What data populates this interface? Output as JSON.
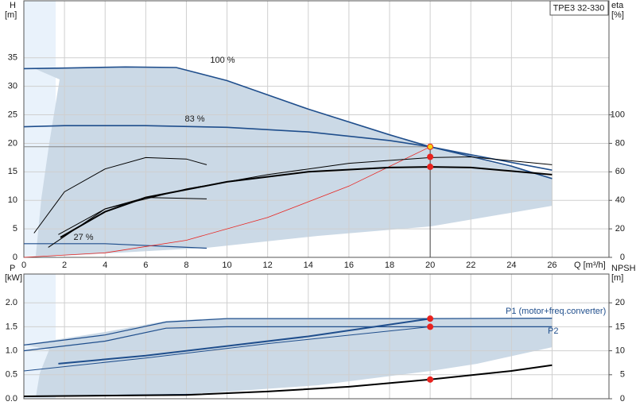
{
  "chart_data": [
    {
      "type": "line",
      "title": "TPE3 32-330",
      "y_label": [
        "H",
        "[m]"
      ],
      "y2_label": [
        "eta",
        "[%]"
      ],
      "x_label": "Q [m³/h]",
      "xlim": [
        0,
        28.8
      ],
      "xticks": [
        0,
        2,
        4,
        6,
        8,
        10,
        12,
        14,
        16,
        18,
        20,
        22,
        24,
        26
      ],
      "ylim": [
        0,
        45
      ],
      "yticks": [
        0,
        5,
        10,
        15,
        20,
        25,
        30,
        35
      ],
      "y2lim": [
        0,
        180
      ],
      "y2ticks": [
        0,
        20,
        40,
        60,
        80,
        100
      ],
      "grid": true,
      "series": [
        {
          "name": "100 %",
          "color": "#1f4e8c",
          "width": 1.6,
          "x": [
            0,
            2,
            5,
            7.5,
            10,
            14,
            18,
            20,
            24,
            26
          ],
          "values": [
            33.1,
            33.2,
            33.4,
            33.3,
            31,
            26,
            21.5,
            19.4,
            16,
            13.8
          ]
        },
        {
          "name": "83 %",
          "color": "#1f4e8c",
          "width": 1.6,
          "x": [
            0,
            2,
            6,
            10,
            14,
            18,
            20,
            22,
            26
          ],
          "values": [
            22.9,
            23.1,
            23.1,
            22.8,
            22,
            20.5,
            19.4,
            18,
            15.3
          ]
        },
        {
          "name": "27 %",
          "color": "#1f4e8c",
          "width": 1.2,
          "x": [
            0,
            4,
            9
          ],
          "values": [
            2.4,
            2.4,
            1.6
          ]
        },
        {
          "color": "#e8231f",
          "width": 0.8,
          "x": [
            0,
            4,
            8,
            12,
            16,
            20
          ],
          "values": [
            0,
            0.8,
            3,
            7,
            12.5,
            19.4
          ]
        },
        {
          "color": "#000000",
          "width": 2,
          "axis": "y2",
          "x": [
            1.8,
            4,
            6,
            10,
            14,
            18,
            20,
            22,
            26
          ],
          "values": [
            14,
            32,
            42,
            53,
            60,
            63,
            63.5,
            63,
            58
          ]
        },
        {
          "color": "#000000",
          "width": 1,
          "axis": "y2",
          "x": [
            1.7,
            4,
            8,
            12,
            16,
            20,
            22,
            26
          ],
          "values": [
            16,
            34,
            48,
            58,
            66,
            70,
            70.5,
            65
          ]
        },
        {
          "color": "#000000",
          "width": 1,
          "axis": "y2",
          "x": [
            0.5,
            2,
            4,
            6,
            8,
            9
          ],
          "values": [
            17,
            46,
            62,
            70,
            69,
            65
          ]
        },
        {
          "color": "#000000",
          "width": 1,
          "axis": "y2",
          "x": [
            1.2,
            4,
            6,
            9
          ],
          "values": [
            7,
            34,
            42,
            41
          ]
        }
      ],
      "points": [
        {
          "x": 20,
          "y": 19.4,
          "color": "#f5d312"
        },
        {
          "x": 20,
          "y": 70.5,
          "axis": "y2",
          "color": "#e8231f"
        },
        {
          "x": 20,
          "y": 63.5,
          "axis": "y2",
          "color": "#e8231f"
        }
      ]
    },
    {
      "type": "line",
      "y_label": [
        "P",
        "[kW]"
      ],
      "y2_label": [
        "NPSH",
        "[m]"
      ],
      "xlim": [
        0,
        28.8
      ],
      "ylim": [
        0,
        2.6
      ],
      "yticks": [
        {
          "value": 0,
          "label": "0.0"
        },
        {
          "value": 0.5,
          "label": "0.5"
        },
        {
          "value": 1,
          "label": "1.0"
        },
        {
          "value": 1.5,
          "label": "1.5"
        },
        {
          "value": 2,
          "label": "2.0"
        }
      ],
      "y2lim": [
        0,
        26
      ],
      "y2ticks": [
        0,
        5,
        10,
        15,
        20
      ],
      "grid": true,
      "series": [
        {
          "name": "P1 (motor+freq.converter)",
          "color": "#1f4e8c",
          "width": 1.2,
          "x": [
            0,
            4,
            7,
            10,
            20,
            26
          ],
          "values": [
            1.12,
            1.33,
            1.6,
            1.67,
            1.67,
            1.68
          ]
        },
        {
          "name": "P2",
          "color": "#1f4e8c",
          "width": 1.2,
          "x": [
            0,
            4,
            7,
            10,
            26
          ],
          "values": [
            1,
            1.2,
            1.47,
            1.5,
            1.5
          ]
        },
        {
          "color": "#1f4e8c",
          "width": 2,
          "x": [
            1.7,
            6,
            10,
            14,
            20
          ],
          "values": [
            0.73,
            0.9,
            1.1,
            1.3,
            1.67
          ]
        },
        {
          "color": "#1f4e8c",
          "width": 1,
          "x": [
            0,
            6,
            12,
            20
          ],
          "values": [
            0.58,
            0.85,
            1.15,
            1.5
          ]
        },
        {
          "color": "#1f4e8c",
          "width": 1,
          "x": [
            0,
            9
          ],
          "values": [
            0.05,
            0.1
          ]
        },
        {
          "color": "#000000",
          "width": 2,
          "axis": "y2",
          "x": [
            0,
            8,
            12,
            16,
            20,
            24,
            26
          ],
          "values": [
            0.5,
            0.8,
            1.5,
            2.5,
            4,
            5.8,
            7
          ]
        }
      ],
      "points": [
        {
          "x": 20,
          "y": 1.67,
          "color": "#e8231f"
        },
        {
          "x": 20,
          "y": 1.5,
          "color": "#e8231f"
        },
        {
          "x": 20,
          "y": 4,
          "axis": "y2",
          "color": "#e8231f"
        }
      ]
    }
  ]
}
